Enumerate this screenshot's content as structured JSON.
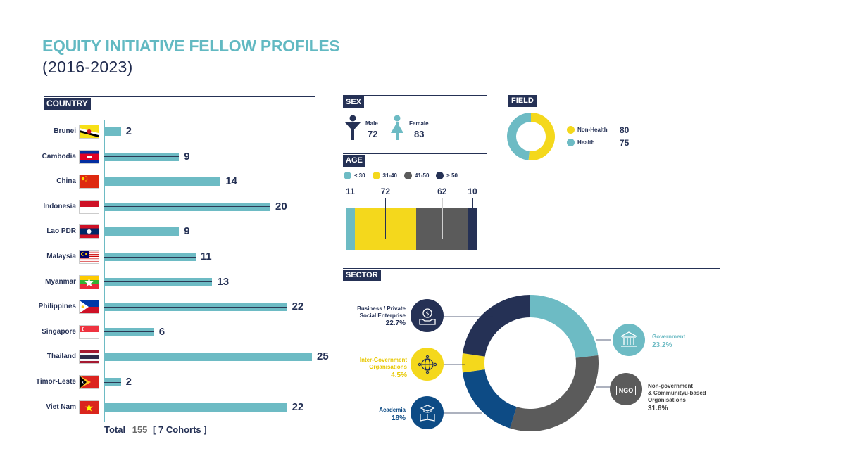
{
  "header": {
    "title": "EQUITY INITIATIVE FELLOW PROFILES",
    "subtitle": "(2016-2023)"
  },
  "sections": {
    "country": "COUNTRY",
    "sex": "SEX",
    "age": "AGE",
    "field": "FIELD",
    "sector": "SECTOR"
  },
  "colors": {
    "teal": "#6dbbc4",
    "navy": "#253155",
    "yellow": "#f4d81c",
    "grey": "#5b5b5b",
    "blue": "#0d4b85"
  },
  "totals": {
    "total_label": "Total",
    "total_value": "155",
    "cohorts": "[ 7 Cohorts ]"
  },
  "sex": {
    "male_label": "Male",
    "male_value": "72",
    "female_label": "Female",
    "female_value": "83",
    "male_icon": "male-icon",
    "female_icon": "female-icon"
  },
  "chart_data": [
    {
      "type": "bar",
      "orientation": "horizontal",
      "title": "COUNTRY",
      "categories": [
        "Brunei",
        "Cambodia",
        "China",
        "Indonesia",
        "Lao PDR",
        "Malaysia",
        "Myanmar",
        "Philippines",
        "Singapore",
        "Thailand",
        "Timor-Leste",
        "Viet Nam"
      ],
      "values": [
        2,
        9,
        14,
        20,
        9,
        11,
        13,
        22,
        6,
        25,
        2,
        22
      ],
      "xlim": [
        0,
        25
      ]
    },
    {
      "type": "bar",
      "orientation": "stacked",
      "title": "AGE",
      "categories": [
        "≤ 30",
        "31-40",
        "41-50",
        "≥ 50"
      ],
      "values": [
        11,
        72,
        62,
        10
      ],
      "colors": [
        "#6dbbc4",
        "#f4d81c",
        "#5b5b5b",
        "#253155"
      ]
    },
    {
      "type": "pie",
      "title": "FIELD",
      "categories": [
        "Non-Health",
        "Health"
      ],
      "values": [
        80,
        75
      ],
      "colors": [
        "#f4d81c",
        "#6dbbc4"
      ]
    },
    {
      "type": "pie",
      "title": "SECTOR",
      "categories": [
        "Government",
        "Non-government & Communityu-based Organisations",
        "Academia",
        "Inter-Government Organisations",
        "Business / Private Social Enterprise"
      ],
      "values": [
        23.2,
        31.6,
        18,
        4.5,
        22.7
      ],
      "pct_labels": [
        "23.2%",
        "31.6%",
        "18%",
        "4.5%",
        "22.7%"
      ],
      "colors": [
        "#6dbbc4",
        "#5b5b5b",
        "#0d4b85",
        "#f4d81c",
        "#253155"
      ]
    }
  ],
  "sector_labels": {
    "business_line1": "Business / Private",
    "business_line2": "Social Enterprise",
    "business_pct": "22.7%",
    "intergov_line1": "Inter-Government",
    "intergov_line2": "Organisations",
    "intergov_pct": "4.5%",
    "academia": "Academia",
    "academia_pct": "18%",
    "government": "Government",
    "government_pct": "23.2%",
    "ngo_line1": "Non-government",
    "ngo_line2": "& Communityu-based",
    "ngo_line3": "Organisations",
    "ngo_pct": "31.6%",
    "ngo_icon_text": "NGO"
  }
}
